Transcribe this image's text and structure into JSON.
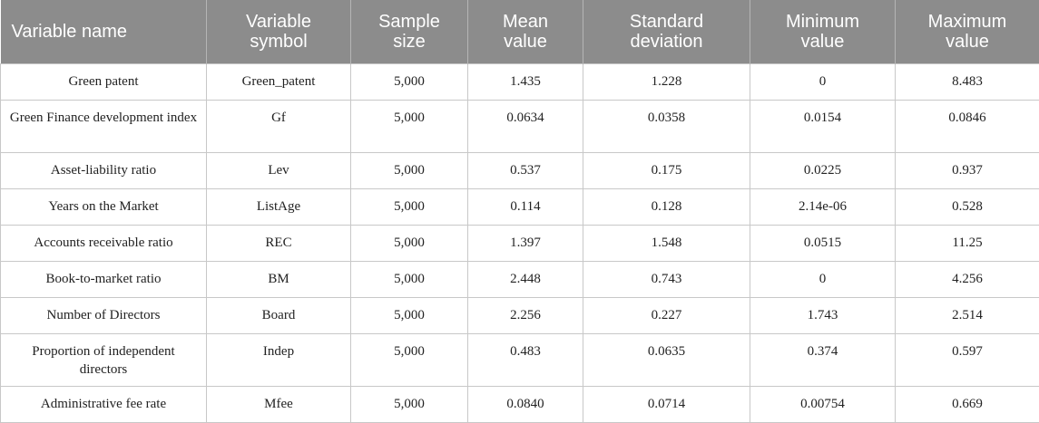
{
  "table": {
    "columns": [
      "Variable name",
      "Variable symbol",
      "Sample size",
      "Mean value",
      "Standard deviation",
      "Minimum value",
      "Maximum value"
    ],
    "rows": [
      [
        "Green patent",
        "Green_patent",
        "5,000",
        "1.435",
        "1.228",
        "0",
        "8.483"
      ],
      [
        "Green Finance development index",
        "Gf",
        "5,000",
        "0.0634",
        "0.0358",
        "0.0154",
        "0.0846"
      ],
      [
        "Asset-liability ratio",
        "Lev",
        "5,000",
        "0.537",
        "0.175",
        "0.0225",
        "0.937"
      ],
      [
        "Years on the Market",
        "ListAge",
        "5,000",
        "0.114",
        "0.128",
        "2.14e-06",
        "0.528"
      ],
      [
        "Accounts receivable ratio",
        "REC",
        "5,000",
        "1.397",
        "1.548",
        "0.0515",
        "11.25"
      ],
      [
        "Book-to-market ratio",
        "BM",
        "5,000",
        "2.448",
        "0.743",
        "0",
        "4.256"
      ],
      [
        "Number of Directors",
        "Board",
        "5,000",
        "2.256",
        "0.227",
        "1.743",
        "2.514"
      ],
      [
        "Proportion of independent directors",
        "Indep",
        "5,000",
        "0.483",
        "0.0635",
        "0.374",
        "0.597"
      ],
      [
        "Administrative fee rate",
        "Mfee",
        "5,000",
        "0.0840",
        "0.0714",
        "0.00754",
        "0.669"
      ]
    ]
  }
}
